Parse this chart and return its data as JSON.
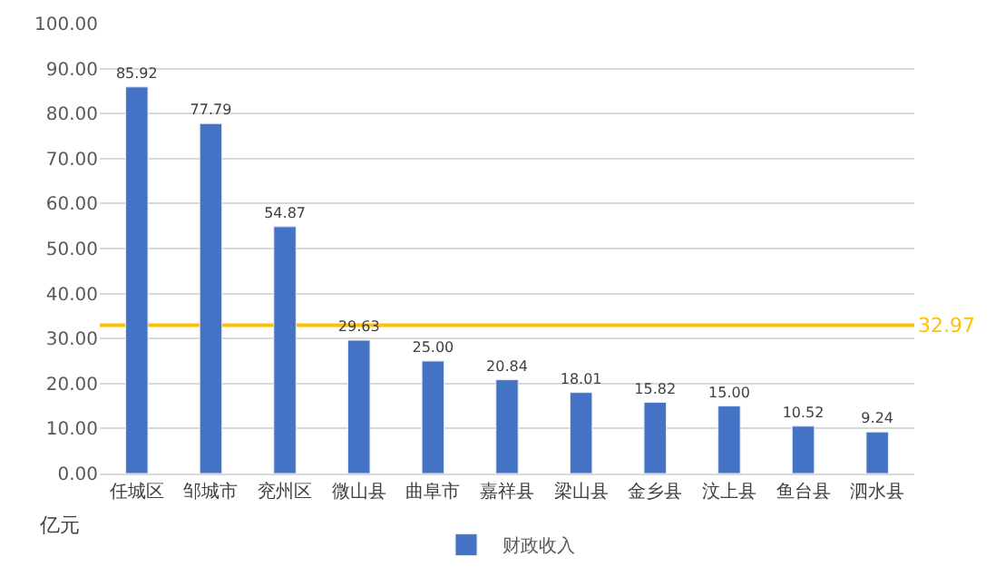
{
  "chart_data": {
    "type": "bar",
    "ylabel": "亿元",
    "categories": [
      "任城区",
      "邹城市",
      "兖州区",
      "微山县",
      "曲阜市",
      "嘉祥县",
      "梁山县",
      "金乡县",
      "汶上县",
      "鱼台县",
      "泗水县"
    ],
    "series": [
      {
        "name": "财政收入",
        "color": "#4472c4",
        "values": [
          85.92,
          77.79,
          54.87,
          29.63,
          25.0,
          20.84,
          18.01,
          15.82,
          15.0,
          10.52,
          9.24
        ],
        "value_labels": [
          "85.92",
          "77.79",
          "54.87",
          "29.63",
          "25.00",
          "20.84",
          "18.01",
          "15.82",
          "15.00",
          "10.52",
          "9.24"
        ]
      }
    ],
    "ref_lines": [
      {
        "axis": "y",
        "value": 32.97,
        "label": "32.97",
        "color": "#ffc000"
      }
    ],
    "ylim": [
      0,
      100
    ],
    "yticks": [
      {
        "value": 0,
        "label": "0.00"
      },
      {
        "value": 10,
        "label": "10.00"
      },
      {
        "value": 20,
        "label": "20.00"
      },
      {
        "value": 30,
        "label": "30.00"
      },
      {
        "value": 40,
        "label": "40.00"
      },
      {
        "value": 50,
        "label": "50.00"
      },
      {
        "value": 60,
        "label": "60.00"
      },
      {
        "value": 70,
        "label": "70.00"
      },
      {
        "value": 80,
        "label": "80.00"
      },
      {
        "value": 90,
        "label": "90.00"
      },
      {
        "value": 100,
        "label": "100.00"
      }
    ],
    "grid": "y",
    "legend": "bottom"
  }
}
